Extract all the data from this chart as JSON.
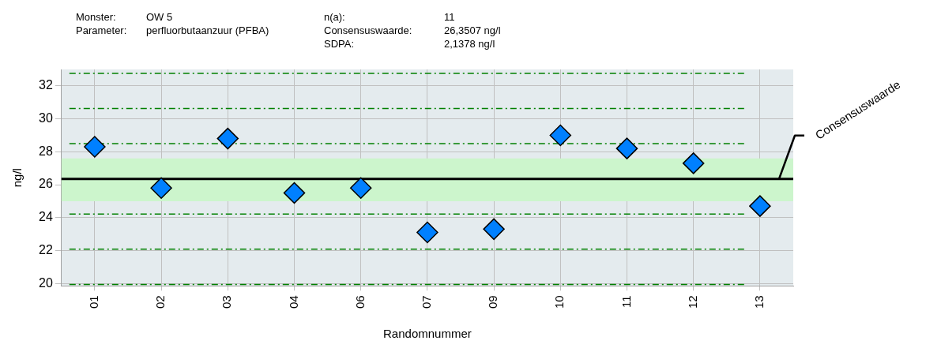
{
  "chart_data": {
    "type": "scatter",
    "xlabel": "Randomnummer",
    "ylabel": "ng/l",
    "annotations": [
      "Monster:",
      "OW 5",
      "Parameter:",
      "perfluorbutaanzuur (PFBA)",
      "n(a):",
      "11",
      "Consensuswaarde:",
      "26,3507 ng/l",
      "SDPA:",
      "2,1378 ng/l"
    ],
    "categories": [
      "01",
      "02",
      "03",
      "04",
      "06",
      "07",
      "09",
      "10",
      "11",
      "12",
      "13"
    ],
    "series": [
      {
        "color": "#0080ff",
        "values": [
          28.3,
          25.8,
          28.8,
          25.5,
          25.8,
          23.1,
          23.3,
          29.0,
          28.2,
          27.3,
          24.7
        ]
      }
    ],
    "ylim": [
      19.85,
      33
    ],
    "yticks": [
      20,
      22,
      24,
      26,
      28,
      30,
      32
    ],
    "grid": true,
    "marker": "diamond",
    "legend": false,
    "bands": [
      {
        "axis": "y",
        "from": 25.0,
        "to": 27.6,
        "color": "#ccf5cc"
      }
    ],
    "ref_lines": [
      {
        "axis": "y",
        "value": 26.3507,
        "label": "Consensuswaarde",
        "color": "#000000",
        "line_style": "solid"
      },
      {
        "axis": "y",
        "value": 19.94,
        "color": "#008000",
        "line_style": "dashed"
      },
      {
        "axis": "y",
        "value": 22.08,
        "color": "#008000",
        "line_style": "dashed"
      },
      {
        "axis": "y",
        "value": 24.21,
        "color": "#008000",
        "line_style": "dashed"
      },
      {
        "axis": "y",
        "value": 28.49,
        "color": "#008000",
        "line_style": "dashed"
      },
      {
        "axis": "y",
        "value": 30.63,
        "color": "#008000",
        "line_style": "dashed"
      },
      {
        "axis": "y",
        "value": 32.76,
        "color": "#008000",
        "line_style": "dashed"
      }
    ]
  }
}
